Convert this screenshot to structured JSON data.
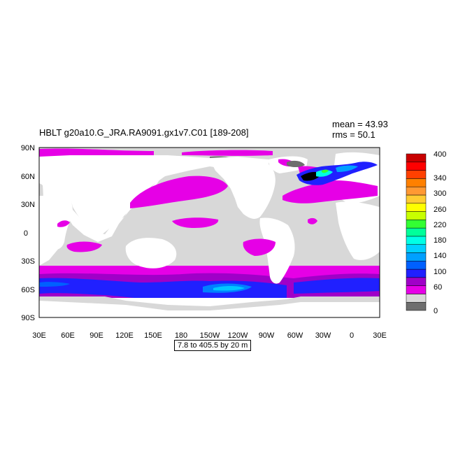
{
  "title": "HBLT g20a10.G_JRA.RA9091.gx1v7.C01 [189-208]",
  "stats": {
    "mean": "mean = 43.93",
    "rms": "rms = 50.1"
  },
  "contour_info": "7.8 to 405.5 by 20 m",
  "lat_labels": [
    "90N",
    "60N",
    "30N",
    "0",
    "30S",
    "60S",
    "90S"
  ],
  "lon_labels": [
    "30E",
    "60E",
    "90E",
    "120E",
    "150E",
    "180",
    "150W",
    "120W",
    "90W",
    "60W",
    "30W",
    "0",
    "30E"
  ],
  "colorbar": {
    "labels": [
      "0",
      "60",
      "100",
      "140",
      "180",
      "220",
      "260",
      "300",
      "340",
      "400"
    ],
    "colors": [
      "#6e6e6e",
      "#d8d8d8",
      "#e600e6",
      "#a000c8",
      "#2020ff",
      "#0060ff",
      "#00a0ff",
      "#00d0ff",
      "#00ffe6",
      "#00ff9a",
      "#33ff33",
      "#c8ff00",
      "#ffff00",
      "#ffcc33",
      "#ff9933",
      "#ff8000",
      "#ff4000",
      "#ff0000",
      "#c80000"
    ]
  },
  "palette": {
    "land": "#ffffff",
    "low": "#d8d8d8",
    "ice": "#6e6e6e",
    "magenta": "#e600e6",
    "purple": "#a000c8",
    "blue": "#2020ff",
    "deepblue": "#0060ff",
    "cyan": "#00c8ff"
  }
}
